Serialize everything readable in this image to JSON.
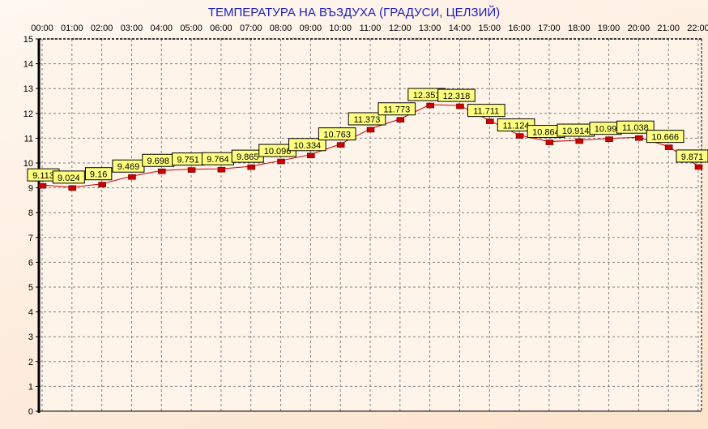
{
  "chart_data": {
    "type": "line",
    "title": "ТЕМПЕРАТУРА НА ВЪЗДУХА  (ГРАДУСИ, ЦЕЛЗИЙ)",
    "xlabel": "",
    "ylabel": "",
    "categories": [
      "00:00",
      "01:00",
      "02:00",
      "03:00",
      "04:00",
      "05:00",
      "06:00",
      "07:00",
      "08:00",
      "09:00",
      "10:00",
      "11:00",
      "12:00",
      "13:00",
      "14:00",
      "15:00",
      "16:00",
      "17:00",
      "18:00",
      "19:00",
      "20:00",
      "21:00",
      "22:00"
    ],
    "values": [
      9.113,
      9.024,
      9.16,
      9.469,
      9.698,
      9.751,
      9.764,
      9.865,
      10.096,
      10.334,
      10.763,
      11.373,
      11.773,
      12.351,
      12.318,
      11.711,
      11.124,
      10.864,
      10.914,
      10.99,
      11.038,
      10.666,
      9.871
    ],
    "data_labels": [
      "9.113",
      "9.024",
      "9.16",
      "9.469",
      "9.698",
      "9.751",
      "9.764",
      "9.865",
      "10.096",
      "10.334",
      "10.763",
      "11.373",
      "11.773",
      "12.351",
      "12.318",
      "11.711",
      "11.124",
      "10.864",
      "10.914",
      "10.99",
      "11.038",
      "10.666",
      "9.871"
    ],
    "ylim": [
      0,
      15
    ],
    "yticks": [
      "0",
      "1",
      "2",
      "3",
      "4",
      "5",
      "6",
      "7",
      "8",
      "9",
      "10",
      "11",
      "12",
      "13",
      "14",
      "15"
    ],
    "xaxis_position": "top",
    "grid": true,
    "legend": "none",
    "colors": {
      "line": "#cc0000",
      "marker": "#cc0000",
      "label_bg": "#ffff80",
      "title": "#2020c0",
      "grid": "#808080"
    }
  }
}
